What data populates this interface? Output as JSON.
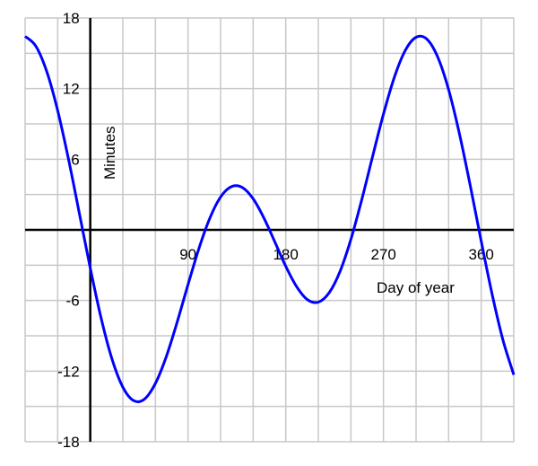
{
  "chart_data": {
    "type": "line",
    "title": "",
    "xlabel": "Day of year",
    "ylabel": "Minutes",
    "xlim": [
      -60,
      390
    ],
    "ylim": [
      -18,
      18
    ],
    "grid": true,
    "x_grid_step": 30,
    "y_grid_step": 3,
    "x_ticks": [
      90,
      180,
      270,
      360
    ],
    "y_ticks": [
      18,
      12,
      6,
      -6,
      -12,
      -18
    ],
    "line_color": "#0000ff",
    "grid_color": "#c8c8c8",
    "series": [
      {
        "x": [
          -60,
          -50,
          -40,
          -30,
          -20,
          -10,
          0,
          10,
          20,
          30,
          40,
          50,
          60,
          70,
          80,
          90,
          100,
          110,
          120,
          130,
          140,
          150,
          160,
          170,
          180,
          190,
          200,
          210,
          220,
          230,
          240,
          250,
          260,
          270,
          280,
          290,
          300,
          310,
          320,
          330,
          340,
          350,
          360,
          370,
          380,
          390
        ],
        "y": [
          16.44,
          15.59,
          13.43,
          10.13,
          5.99,
          1.38,
          -3.25,
          -7.5,
          -10.97,
          -13.36,
          -14.51,
          -14.37,
          -13.04,
          -10.77,
          -7.84,
          -4.66,
          -1.6,
          0.97,
          2.79,
          3.67,
          3.6,
          2.64,
          0.99,
          -1.03,
          -3.09,
          -4.82,
          -5.93,
          -6.14,
          -5.34,
          -3.53,
          -0.81,
          2.56,
          6.24,
          9.84,
          12.96,
          15.23,
          16.36,
          16.2,
          14.67,
          11.91,
          8.14,
          3.72,
          -0.96,
          -5.45,
          -9.35,
          -12.31
        ]
      }
    ]
  }
}
